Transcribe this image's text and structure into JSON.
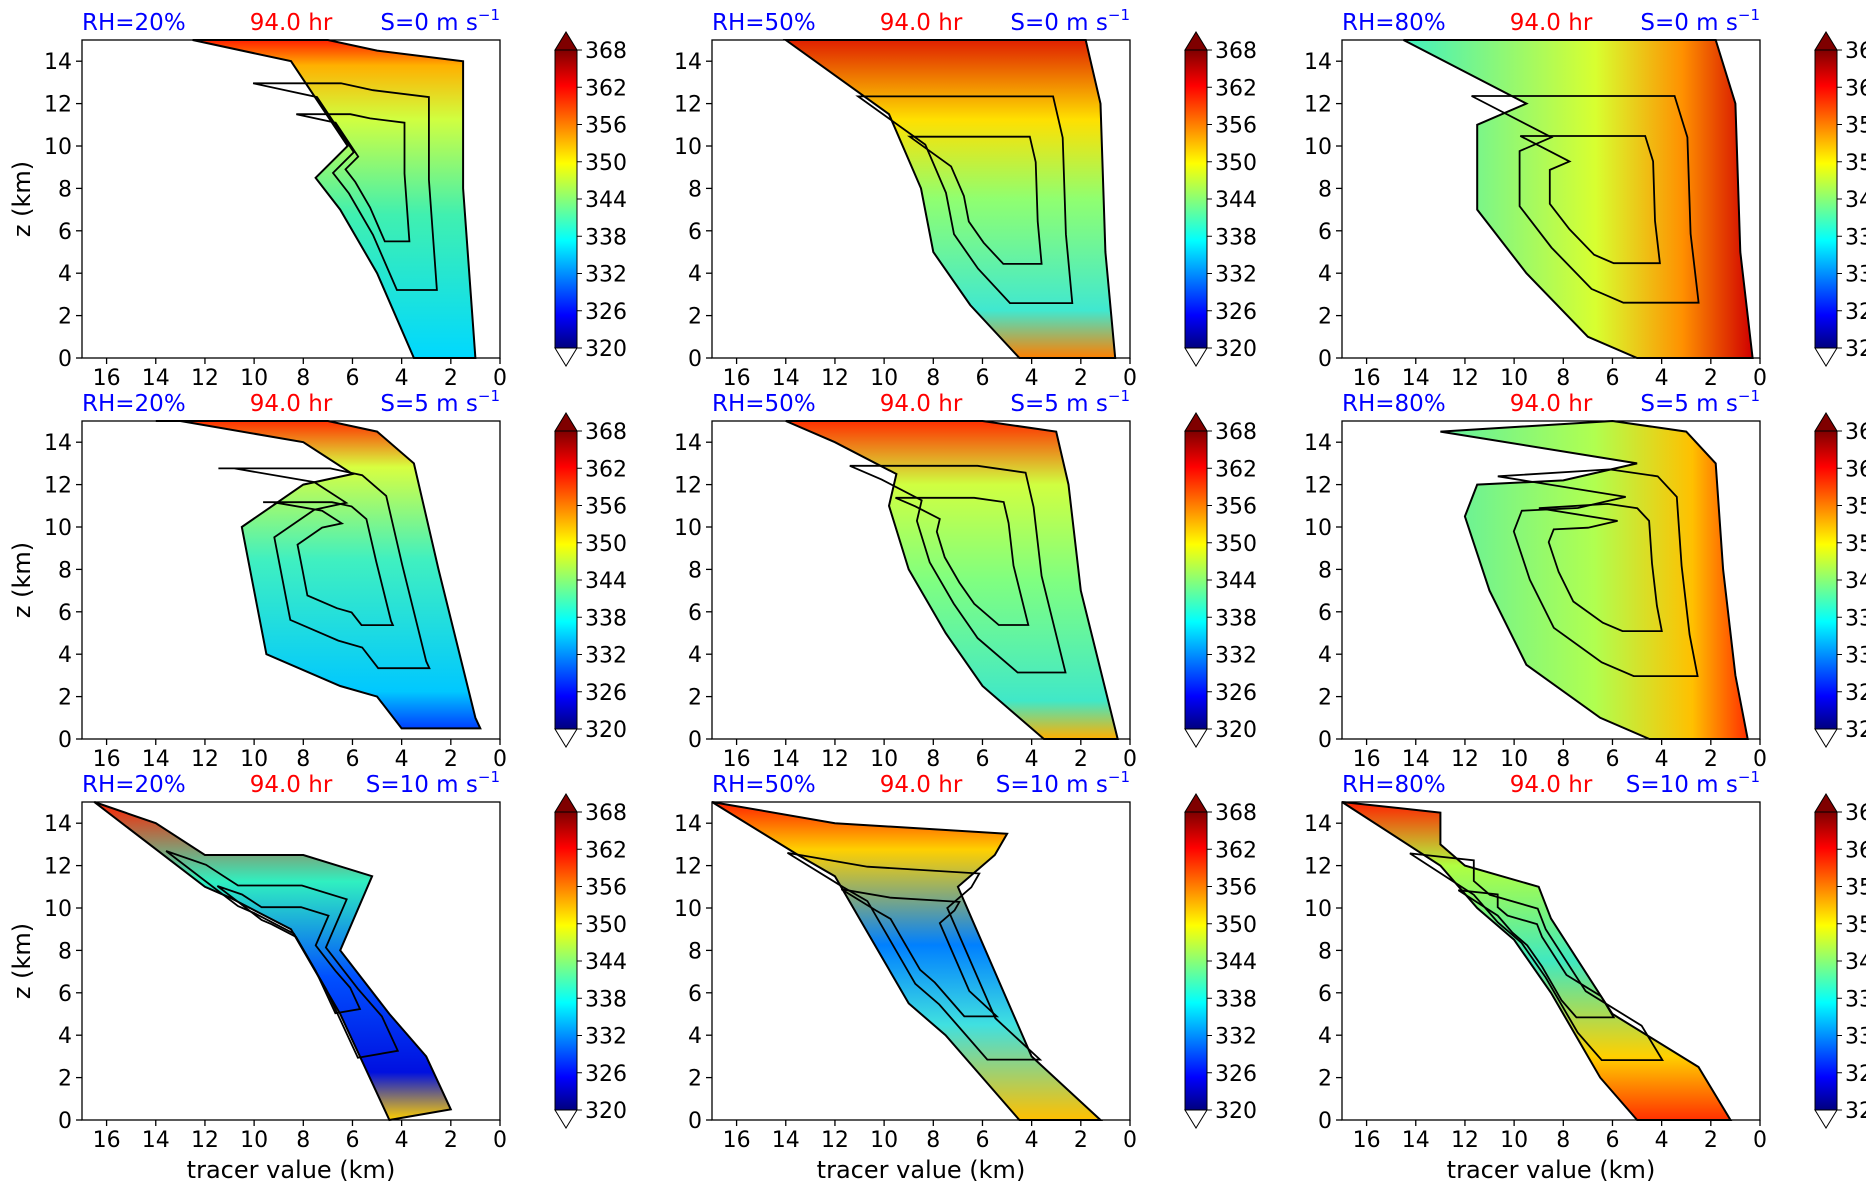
{
  "chart_data": {
    "type": "heatmap",
    "time_label": "94.0 hr",
    "colors": {
      "rh": "#0000ff",
      "time": "#ff0000",
      "shear": "#0000ff"
    },
    "xlabel": "tracer value (km)",
    "ylabel": "z (km)",
    "xlim": [
      17,
      0
    ],
    "ylim": [
      0,
      15
    ],
    "xticks": [
      "16",
      "14",
      "12",
      "10",
      "8",
      "6",
      "4",
      "2",
      "0"
    ],
    "yticks": [
      "0",
      "2",
      "4",
      "6",
      "8",
      "10",
      "12",
      "14"
    ],
    "colorbar": {
      "ticks": [
        "320",
        "326",
        "332",
        "338",
        "344",
        "350",
        "356",
        "362",
        "368"
      ],
      "range": [
        320,
        368
      ],
      "colormap": "jet",
      "extend": "both"
    },
    "panels": [
      {
        "rh": "RH=20%",
        "time": "94.0 hr",
        "shear": "S=0 m s",
        "shear_exp": "−1"
      },
      {
        "rh": "RH=50%",
        "time": "94.0 hr",
        "shear": "S=0 m s",
        "shear_exp": "−1"
      },
      {
        "rh": "RH=80%",
        "time": "94.0 hr",
        "shear": "S=0 m s",
        "shear_exp": "−1"
      },
      {
        "rh": "RH=20%",
        "time": "94.0 hr",
        "shear": "S=5 m s",
        "shear_exp": "−1"
      },
      {
        "rh": "RH=50%",
        "time": "94.0 hr",
        "shear": "S=5 m s",
        "shear_exp": "−1"
      },
      {
        "rh": "RH=80%",
        "time": "94.0 hr",
        "shear": "S=5 m s",
        "shear_exp": "−1"
      },
      {
        "rh": "RH=20%",
        "time": "94.0 hr",
        "shear": "S=10 m s",
        "shear_exp": "−1"
      },
      {
        "rh": "RH=50%",
        "time": "94.0 hr",
        "shear": "S=10 m s",
        "shear_exp": "−1"
      },
      {
        "rh": "RH=80%",
        "time": "94.0 hr",
        "shear": "S=10 m s",
        "shear_exp": "−1"
      }
    ]
  }
}
